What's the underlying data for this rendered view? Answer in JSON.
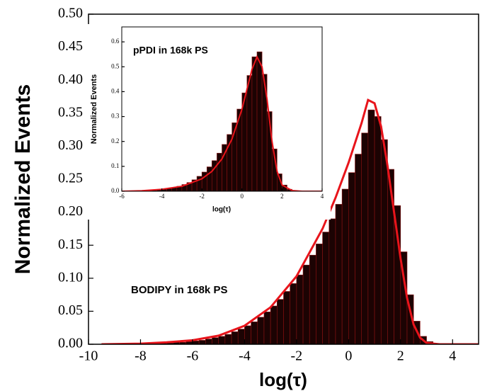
{
  "chart_data": [
    {
      "type": "histogram",
      "xlabel": "log(τ)",
      "ylabel": "Normalized Events",
      "annotation": "BODIPY in 168k PS",
      "bins": [
        -8,
        -7.75,
        -7.5,
        -7.25,
        -7,
        -6.75,
        -6.5,
        -6.25,
        -6,
        -5.75,
        -5.5,
        -5.25,
        -5,
        -4.75,
        -4.5,
        -4.25,
        -4,
        -3.75,
        -3.5,
        -3.25,
        -3,
        -2.75,
        -2.5,
        -2.25,
        -2,
        -1.75,
        -1.5,
        -1.25,
        -1,
        -0.75,
        -0.5,
        -0.25,
        0,
        0.25,
        0.5,
        0.75,
        1,
        1.25,
        1.5,
        1.75,
        2,
        2.25,
        2.5,
        2.75,
        3,
        3.25,
        3.5
      ],
      "values": [
        0.001,
        0.001,
        0.001,
        0.002,
        0.002,
        0.003,
        0.003,
        0.004,
        0.005,
        0.006,
        0.008,
        0.01,
        0.012,
        0.015,
        0.019,
        0.023,
        0.028,
        0.034,
        0.041,
        0.049,
        0.058,
        0.068,
        0.08,
        0.092,
        0.105,
        0.12,
        0.135,
        0.152,
        0.17,
        0.19,
        0.212,
        0.235,
        0.26,
        0.288,
        0.32,
        0.355,
        0.345,
        0.31,
        0.265,
        0.21,
        0.14,
        0.075,
        0.035,
        0.012,
        0.004,
        0.001
      ],
      "color": "#1c0303",
      "edge_color": "#8b1212",
      "fit": {
        "color": "#e8141b",
        "x": [
          -9.5,
          -8,
          -7,
          -6,
          -5,
          -4,
          -3,
          -2,
          -1,
          -0.5,
          0,
          0.5,
          0.75,
          1,
          1.25,
          1.5,
          1.75,
          2,
          2.25,
          2.5,
          2.75,
          3,
          3.5,
          5
        ],
        "values": [
          0,
          0.001,
          0.003,
          0.006,
          0.013,
          0.028,
          0.056,
          0.103,
          0.175,
          0.222,
          0.275,
          0.335,
          0.37,
          0.365,
          0.33,
          0.27,
          0.2,
          0.13,
          0.07,
          0.03,
          0.01,
          0.002,
          0,
          0
        ]
      },
      "xlim": [
        -10,
        5
      ],
      "xticks": [
        -10,
        -8,
        -6,
        -4,
        -2,
        0,
        2,
        4
      ],
      "ylim": [
        0,
        0.5
      ],
      "yticks": [
        {
          "value": 0,
          "label": "0.00"
        },
        {
          "value": 0.05,
          "label": "0.05"
        },
        {
          "value": 0.1,
          "label": "0.10"
        },
        {
          "value": 0.15,
          "label": "0.15"
        },
        {
          "value": 0.2,
          "label": "0.20"
        },
        {
          "value": 0.25,
          "label": "0.25"
        },
        {
          "value": 0.3,
          "label": "0.30"
        },
        {
          "value": 0.35,
          "label": "0.35"
        },
        {
          "value": 0.4,
          "label": "0.40"
        },
        {
          "value": 0.45,
          "label": "0.45"
        },
        {
          "value": 0.5,
          "label": "0.50"
        }
      ]
    },
    {
      "type": "histogram",
      "xlabel": "log(τ)",
      "ylabel": "Normalized Events",
      "annotation": "pPDI in 168k PS",
      "bins": [
        -5,
        -4.75,
        -4.5,
        -4.25,
        -4,
        -3.75,
        -3.5,
        -3.25,
        -3,
        -2.75,
        -2.5,
        -2.25,
        -2,
        -1.75,
        -1.5,
        -1.25,
        -1,
        -0.75,
        -0.5,
        -0.25,
        0,
        0.25,
        0.5,
        0.75,
        1,
        1.25,
        1.5,
        1.75,
        2,
        2.25,
        2.5,
        2.75,
        3
      ],
      "values": [
        0.002,
        0.003,
        0.004,
        0.006,
        0.008,
        0.011,
        0.015,
        0.02,
        0.027,
        0.035,
        0.046,
        0.06,
        0.077,
        0.098,
        0.123,
        0.153,
        0.188,
        0.228,
        0.275,
        0.33,
        0.395,
        0.465,
        0.54,
        0.56,
        0.47,
        0.32,
        0.17,
        0.07,
        0.025,
        0.008,
        0.003,
        0.001
      ],
      "color": "#1c0303",
      "edge_color": "#8b1212",
      "fit": {
        "color": "#e8141b",
        "x": [
          -6,
          -5,
          -4,
          -3,
          -2,
          -1.5,
          -1,
          -0.5,
          0,
          0.25,
          0.5,
          0.75,
          1,
          1.25,
          1.5,
          1.75,
          2,
          2.5,
          3,
          4
        ],
        "values": [
          0,
          0.002,
          0.008,
          0.02,
          0.05,
          0.08,
          0.13,
          0.21,
          0.33,
          0.41,
          0.49,
          0.54,
          0.5,
          0.37,
          0.2,
          0.08,
          0.025,
          0.003,
          0,
          0
        ]
      },
      "xlim": [
        -6,
        4
      ],
      "xticks": [
        -6,
        -4,
        -2,
        0,
        2,
        4
      ],
      "ylim": [
        0,
        0.66
      ],
      "yticks": [
        {
          "value": 0,
          "label": "0.0"
        },
        {
          "value": 0.1,
          "label": "0.1"
        },
        {
          "value": 0.2,
          "label": "0.2"
        },
        {
          "value": 0.3,
          "label": "0.3"
        },
        {
          "value": 0.4,
          "label": "0.4"
        },
        {
          "value": 0.5,
          "label": "0.5"
        },
        {
          "value": 0.6,
          "label": "0.6"
        }
      ]
    }
  ]
}
